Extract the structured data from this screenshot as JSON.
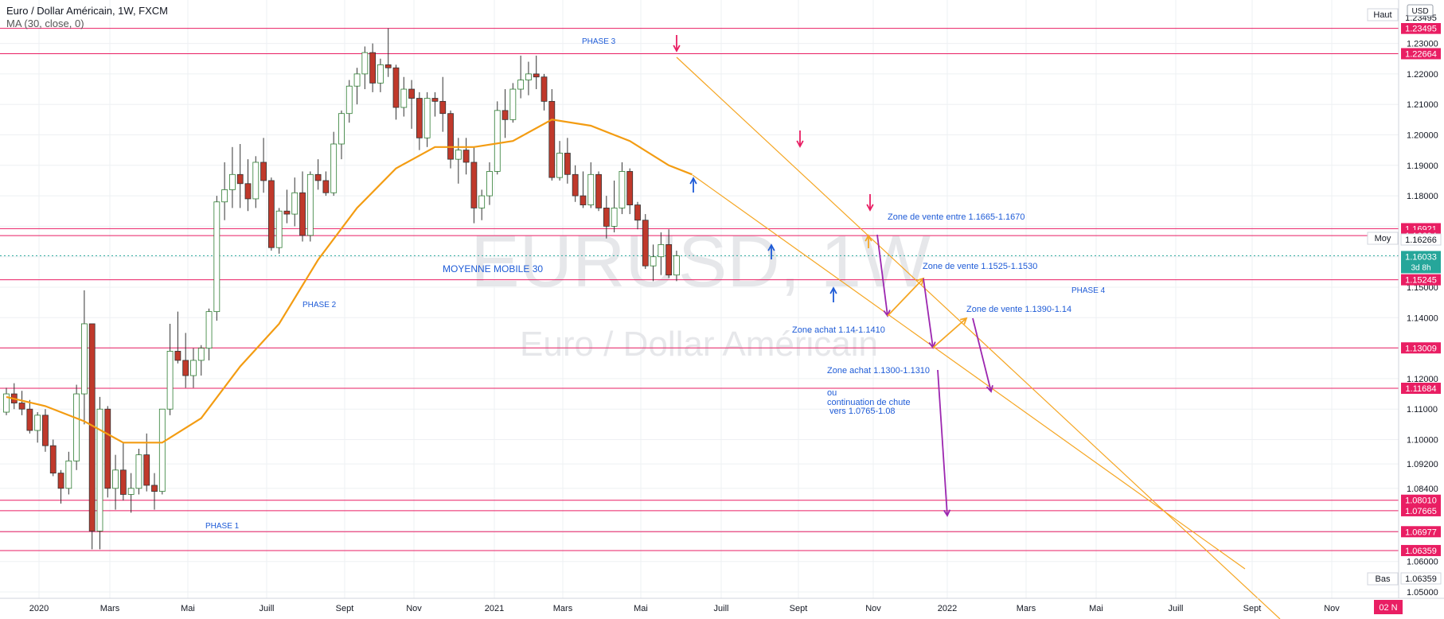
{
  "header": {
    "symbol_line": "Euro / Dollar Américain, 1W, FXCM",
    "indicator_line": "MA (30, close, 0)"
  },
  "watermark": {
    "ticker": "EURUSD, 1W",
    "name": "Euro / Dollar Américain"
  },
  "right_axis": {
    "currency": "USD",
    "high_label": "Haut",
    "mid_label": "Moy",
    "low_label": "Bas",
    "current_price": "1.16033",
    "countdown": "3d 8h",
    "moy_value": "1.16266",
    "haut_value": "1.23495",
    "bas_value": "1.06359"
  },
  "colors": {
    "up": "#ffffff",
    "down": "#c0392b",
    "ma": "#f39c12",
    "level": "#e91e63",
    "annotation": "#1e5bd7",
    "channel": "#f5a623",
    "arrow_purple": "#9c27b0",
    "arrow_pink": "#e91e63",
    "badge": "#e91e63"
  },
  "date_label": "02 N",
  "chart_data": {
    "type": "candlestick",
    "title": "Euro / Dollar Américain, 1W, FXCM",
    "ylim": [
      1.05,
      1.235
    ],
    "y_ticks": [
      "1.05000",
      "1.06000",
      "1.07000",
      "1.08400",
      "1.09200",
      "1.10000",
      "1.11000",
      "1.12000",
      "1.13000",
      "1.14000",
      "1.15000",
      "1.16000",
      "1.17000",
      "1.18000",
      "1.19000",
      "1.20000",
      "1.21000",
      "1.22000",
      "1.23000"
    ],
    "x_ticks": [
      "2020",
      "Mars",
      "Mai",
      "Juill",
      "Sept",
      "Nov",
      "2021",
      "Mars",
      "Mai",
      "Juill",
      "Sept",
      "Nov",
      "2022",
      "Mars",
      "Mai",
      "Juill",
      "Sept",
      "Nov"
    ],
    "ohlc_approx_weekly": [
      [
        1.109,
        1.117,
        1.108,
        1.115
      ],
      [
        1.115,
        1.1185,
        1.11,
        1.112
      ],
      [
        1.112,
        1.116,
        1.108,
        1.11
      ],
      [
        1.11,
        1.113,
        1.102,
        1.103
      ],
      [
        1.103,
        1.109,
        1.099,
        1.108
      ],
      [
        1.108,
        1.11,
        1.096,
        1.098
      ],
      [
        1.098,
        1.1,
        1.088,
        1.089
      ],
      [
        1.089,
        1.09,
        1.079,
        1.084
      ],
      [
        1.084,
        1.096,
        1.082,
        1.093
      ],
      [
        1.093,
        1.118,
        1.09,
        1.115
      ],
      [
        1.115,
        1.149,
        1.105,
        1.138
      ],
      [
        1.138,
        1.138,
        1.064,
        1.07
      ],
      [
        1.07,
        1.114,
        1.064,
        1.11
      ],
      [
        1.11,
        1.111,
        1.081,
        1.084
      ],
      [
        1.084,
        1.095,
        1.077,
        1.09
      ],
      [
        1.09,
        1.099,
        1.08,
        1.082
      ],
      [
        1.082,
        1.089,
        1.076,
        1.084
      ],
      [
        1.084,
        1.097,
        1.082,
        1.095
      ],
      [
        1.095,
        1.102,
        1.083,
        1.085
      ],
      [
        1.085,
        1.089,
        1.077,
        1.083
      ],
      [
        1.083,
        1.11,
        1.082,
        1.11
      ],
      [
        1.11,
        1.138,
        1.108,
        1.129
      ],
      [
        1.129,
        1.142,
        1.125,
        1.126
      ],
      [
        1.126,
        1.135,
        1.117,
        1.121
      ],
      [
        1.121,
        1.13,
        1.117,
        1.126
      ],
      [
        1.126,
        1.131,
        1.121,
        1.13
      ],
      [
        1.13,
        1.143,
        1.126,
        1.142
      ],
      [
        1.142,
        1.18,
        1.139,
        1.178
      ],
      [
        1.178,
        1.191,
        1.172,
        1.182
      ],
      [
        1.182,
        1.196,
        1.176,
        1.187
      ],
      [
        1.187,
        1.197,
        1.176,
        1.184
      ],
      [
        1.184,
        1.192,
        1.175,
        1.179
      ],
      [
        1.179,
        1.193,
        1.176,
        1.191
      ],
      [
        1.191,
        1.199,
        1.181,
        1.185
      ],
      [
        1.185,
        1.186,
        1.162,
        1.163
      ],
      [
        1.163,
        1.176,
        1.161,
        1.175
      ],
      [
        1.175,
        1.182,
        1.171,
        1.174
      ],
      [
        1.174,
        1.186,
        1.17,
        1.181
      ],
      [
        1.181,
        1.188,
        1.165,
        1.167
      ],
      [
        1.167,
        1.188,
        1.165,
        1.187
      ],
      [
        1.187,
        1.192,
        1.182,
        1.185
      ],
      [
        1.185,
        1.188,
        1.18,
        1.181
      ],
      [
        1.181,
        1.201,
        1.18,
        1.197
      ],
      [
        1.197,
        1.208,
        1.192,
        1.207
      ],
      [
        1.207,
        1.218,
        1.204,
        1.216
      ],
      [
        1.216,
        1.222,
        1.21,
        1.22
      ],
      [
        1.22,
        1.229,
        1.215,
        1.227
      ],
      [
        1.227,
        1.23,
        1.214,
        1.217
      ],
      [
        1.217,
        1.225,
        1.214,
        1.223
      ],
      [
        1.223,
        1.235,
        1.219,
        1.222
      ],
      [
        1.222,
        1.223,
        1.205,
        1.209
      ],
      [
        1.209,
        1.219,
        1.206,
        1.215
      ],
      [
        1.215,
        1.218,
        1.202,
        1.212
      ],
      [
        1.212,
        1.214,
        1.195,
        1.199
      ],
      [
        1.199,
        1.214,
        1.196,
        1.212
      ],
      [
        1.212,
        1.214,
        1.206,
        1.211
      ],
      [
        1.211,
        1.219,
        1.201,
        1.207
      ],
      [
        1.207,
        1.208,
        1.189,
        1.192
      ],
      [
        1.192,
        1.199,
        1.184,
        1.195
      ],
      [
        1.195,
        1.199,
        1.187,
        1.191
      ],
      [
        1.191,
        1.196,
        1.171,
        1.176
      ],
      [
        1.176,
        1.182,
        1.172,
        1.18
      ],
      [
        1.18,
        1.191,
        1.177,
        1.188
      ],
      [
        1.188,
        1.211,
        1.187,
        1.208
      ],
      [
        1.208,
        1.215,
        1.199,
        1.205
      ],
      [
        1.205,
        1.217,
        1.204,
        1.215
      ],
      [
        1.215,
        1.226,
        1.212,
        1.218
      ],
      [
        1.218,
        1.224,
        1.213,
        1.22
      ],
      [
        1.22,
        1.226,
        1.215,
        1.219
      ],
      [
        1.219,
        1.22,
        1.208,
        1.211
      ],
      [
        1.211,
        1.215,
        1.185,
        1.186
      ],
      [
        1.186,
        1.198,
        1.185,
        1.194
      ],
      [
        1.194,
        1.199,
        1.184,
        1.187
      ],
      [
        1.187,
        1.19,
        1.178,
        1.18
      ],
      [
        1.18,
        1.188,
        1.176,
        1.177
      ],
      [
        1.177,
        1.191,
        1.176,
        1.187
      ],
      [
        1.187,
        1.188,
        1.175,
        1.176
      ],
      [
        1.176,
        1.18,
        1.166,
        1.17
      ],
      [
        1.17,
        1.185,
        1.168,
        1.176
      ],
      [
        1.176,
        1.191,
        1.174,
        1.188
      ],
      [
        1.188,
        1.189,
        1.174,
        1.177
      ],
      [
        1.177,
        1.178,
        1.169,
        1.172
      ],
      [
        1.172,
        1.174,
        1.156,
        1.157
      ],
      [
        1.157,
        1.164,
        1.152,
        1.16
      ],
      [
        1.16,
        1.168,
        1.154,
        1.164
      ],
      [
        1.164,
        1.169,
        1.153,
        1.154
      ],
      [
        1.154,
        1.162,
        1.152,
        1.1603
      ]
    ],
    "ma30_approx": [
      [
        0,
        1.114
      ],
      [
        5,
        1.111
      ],
      [
        10,
        1.106
      ],
      [
        15,
        1.099
      ],
      [
        20,
        1.099
      ],
      [
        25,
        1.107
      ],
      [
        30,
        1.124
      ],
      [
        35,
        1.138
      ],
      [
        40,
        1.159
      ],
      [
        45,
        1.176
      ],
      [
        50,
        1.189
      ],
      [
        55,
        1.196
      ],
      [
        60,
        1.196
      ],
      [
        65,
        1.198
      ],
      [
        70,
        1.205
      ],
      [
        75,
        1.203
      ],
      [
        80,
        1.198
      ],
      [
        85,
        1.19
      ],
      [
        88,
        1.187
      ]
    ],
    "levels": [
      1.23495,
      1.22664,
      1.16921,
      1.16694,
      1.15245,
      1.13009,
      1.11684,
      1.0801,
      1.07665,
      1.06977,
      1.06359
    ],
    "annotations": [
      "PHASE 1",
      "PHASE 2",
      "PHASE 3",
      "PHASE 4",
      "MOYENNE MOBILE 30",
      "Zone de vente entre 1.1665-1.1670",
      "Zone de vente 1.1525-1.1530",
      "Zone de vente 1.1390-1.14",
      "Zone achat 1.14-1.1410",
      "Zone achat 1.1300-1.1310",
      "ou",
      "continuation de chute",
      "vers 1.0765-1.08"
    ]
  }
}
